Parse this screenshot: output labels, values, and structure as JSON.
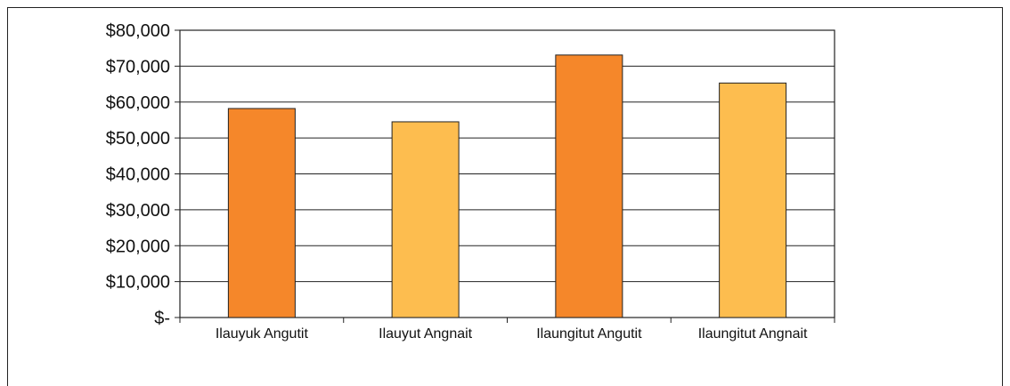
{
  "chart_data": {
    "type": "bar",
    "title": "",
    "xlabel": "",
    "ylabel": "",
    "categories": [
      "Ilauyuk Angutit",
      "Ilauyut Angnait",
      "Ilaungitut Angutit",
      "Ilaungitut Angnait"
    ],
    "values": [
      58200,
      54500,
      73100,
      65300
    ],
    "bar_colors": [
      "#F5872A",
      "#FDBD4F",
      "#F5872A",
      "#FDBD4F"
    ],
    "ylim": [
      0,
      80000
    ],
    "y_ticks": [
      0,
      10000,
      20000,
      30000,
      40000,
      50000,
      60000,
      70000,
      80000
    ],
    "y_tick_labels": [
      "$-",
      "$10,000",
      "$20,000",
      "$30,000",
      "$40,000",
      "$50,000",
      "$60,000",
      "$70,000",
      "$80,000"
    ],
    "grid": true,
    "legend": "none"
  }
}
